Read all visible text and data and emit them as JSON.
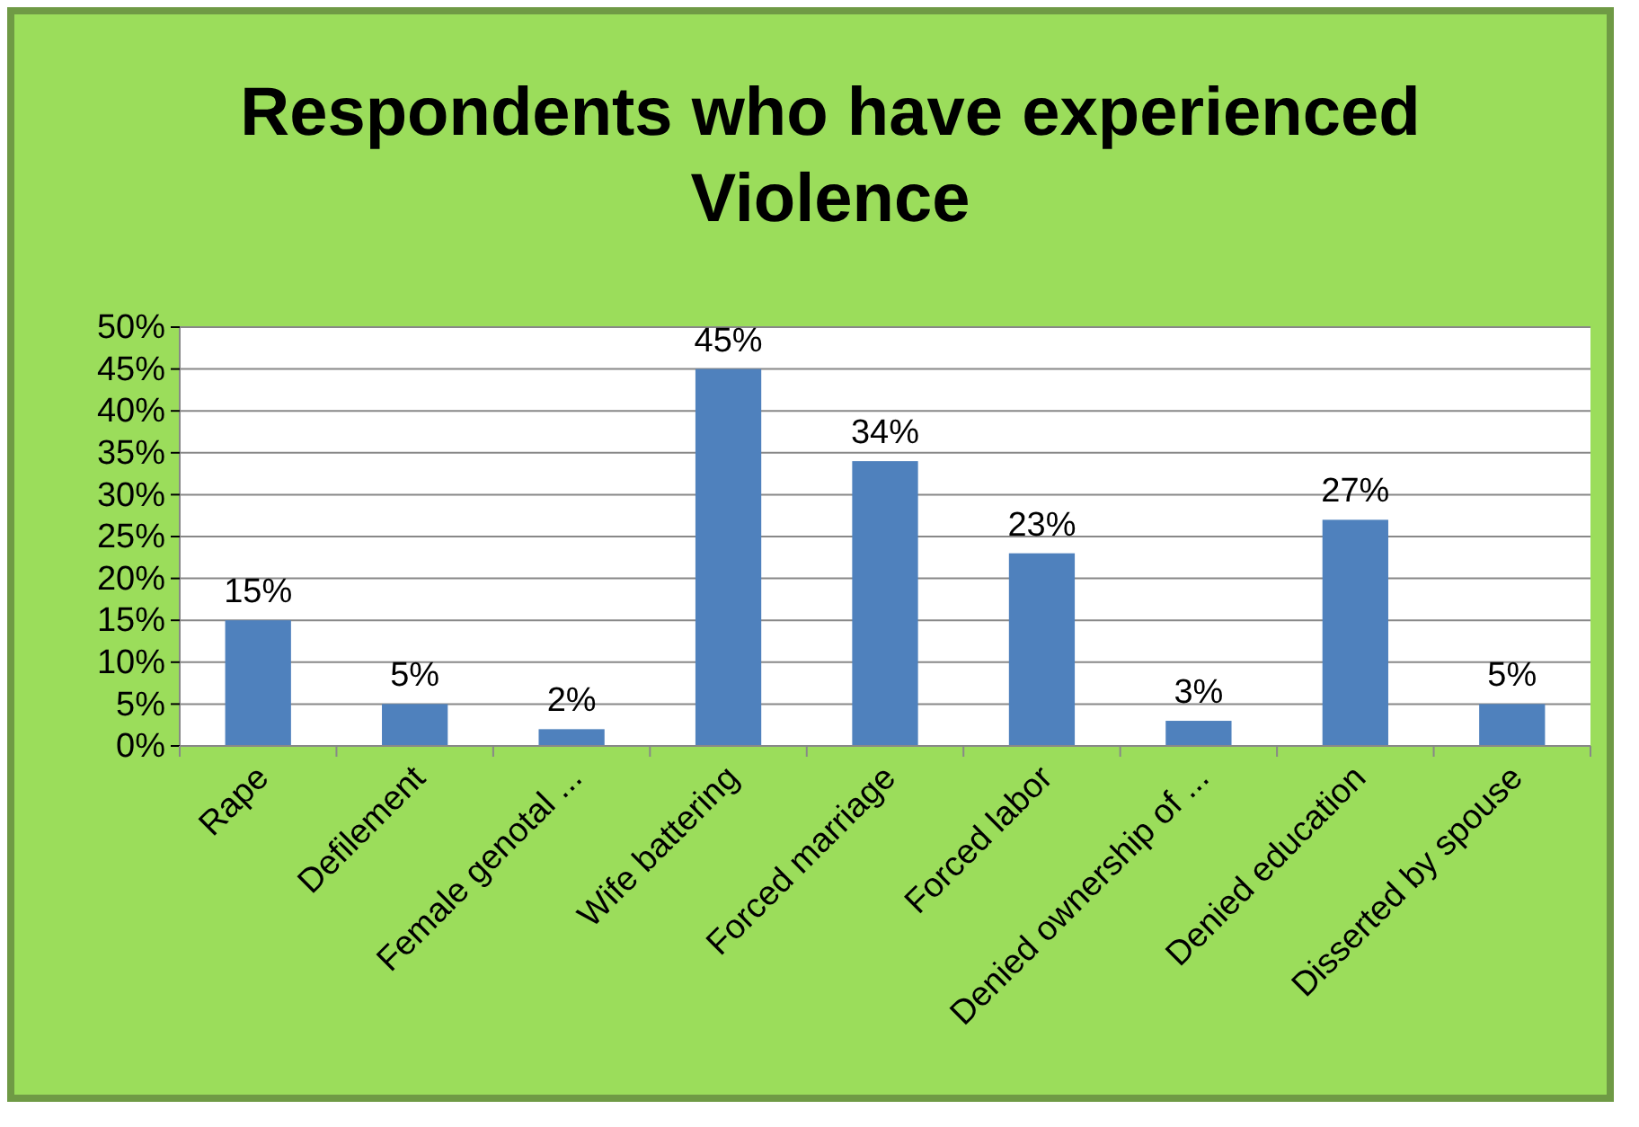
{
  "chart_data": {
    "type": "bar",
    "title": "Respondents who have experienced Violence",
    "categories": [
      "Rape",
      "Defilement",
      "Female genotal ...",
      "Wife battering",
      "Forced marriage",
      "Forced labor",
      "Denied ownership of ...",
      "Denied education",
      "Disserted by spouse"
    ],
    "values": [
      15,
      5,
      2,
      45,
      34,
      23,
      3,
      27,
      5
    ],
    "value_labels": [
      "15%",
      "5%",
      "2%",
      "45%",
      "34%",
      "23%",
      "3%",
      "27%",
      "5%"
    ],
    "color": "#4f81bd",
    "ylim": [
      0,
      50
    ],
    "yticks": [
      {
        "value": 0,
        "label": "0%"
      },
      {
        "value": 5,
        "label": "5%"
      },
      {
        "value": 10,
        "label": "10%"
      },
      {
        "value": 15,
        "label": "15%"
      },
      {
        "value": 20,
        "label": "20%"
      },
      {
        "value": 25,
        "label": "25%"
      },
      {
        "value": 30,
        "label": "30%"
      },
      {
        "value": 35,
        "label": "35%"
      },
      {
        "value": 40,
        "label": "40%"
      },
      {
        "value": 45,
        "label": "45%"
      },
      {
        "value": 50,
        "label": "50%"
      }
    ],
    "grid": "y"
  }
}
